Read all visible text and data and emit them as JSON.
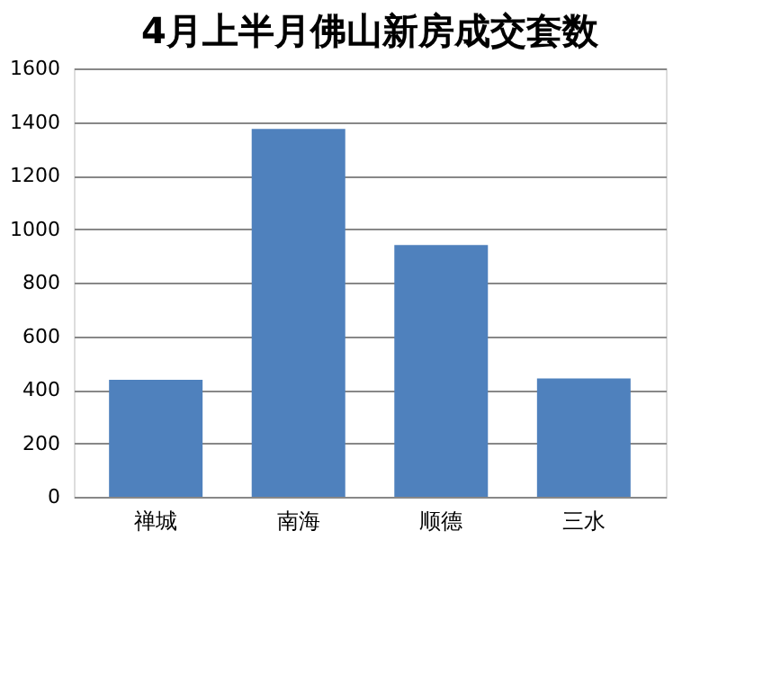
{
  "chart_data": {
    "type": "bar",
    "title": "4月上半月佛山新房成交套数",
    "categories": [
      "禅城",
      "南海",
      "顺德",
      "三水"
    ],
    "values": [
      437,
      1374,
      940,
      442
    ],
    "color": "#4f81bd",
    "ylim": [
      0,
      1600
    ],
    "yticks": [
      0,
      200,
      400,
      600,
      800,
      1000,
      1200,
      1400,
      1600
    ],
    "grid": "y"
  }
}
